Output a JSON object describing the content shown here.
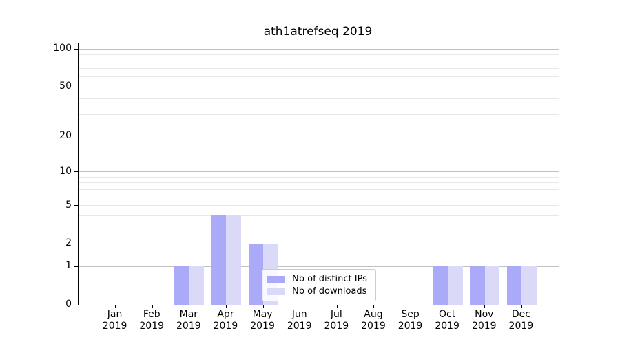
{
  "title": "ath1atrefseq 2019",
  "chart_data": {
    "type": "bar",
    "categories": [
      "Jan",
      "Feb",
      "Mar",
      "Apr",
      "May",
      "Jun",
      "Jul",
      "Aug",
      "Sep",
      "Oct",
      "Nov",
      "Dec"
    ],
    "year_label": "2019",
    "series": [
      {
        "name": "Nb of distinct IPs",
        "color": "#aaaaf8",
        "values": [
          0,
          0,
          1,
          4,
          2,
          0,
          0,
          0,
          0,
          1,
          1,
          1
        ]
      },
      {
        "name": "Nb of downloads",
        "color": "#dadaf8",
        "values": [
          0,
          0,
          1,
          4,
          2,
          0,
          0,
          0,
          0,
          1,
          1,
          1
        ]
      }
    ],
    "yscale": "log1p",
    "ylim": [
      0,
      110
    ],
    "ytick_values": [
      0,
      1,
      2,
      5,
      10,
      20,
      50,
      100
    ],
    "ytick_labels": [
      "0",
      "1",
      "2",
      "5",
      "10",
      "20",
      "50",
      "100"
    ],
    "major_grid_values": [
      1,
      10,
      100
    ],
    "minor_grid_values": [
      2,
      3,
      4,
      5,
      6,
      7,
      8,
      9,
      20,
      30,
      40,
      50,
      60,
      70,
      80,
      90
    ],
    "grid": "on",
    "legend_position": "lower center",
    "bar_group_width_fraction": 0.8
  },
  "colors": {
    "major_grid": "#c0c0c0",
    "minor_grid": "#e8e8e8",
    "spine": "#000000",
    "legend_border": "#cccccc"
  }
}
